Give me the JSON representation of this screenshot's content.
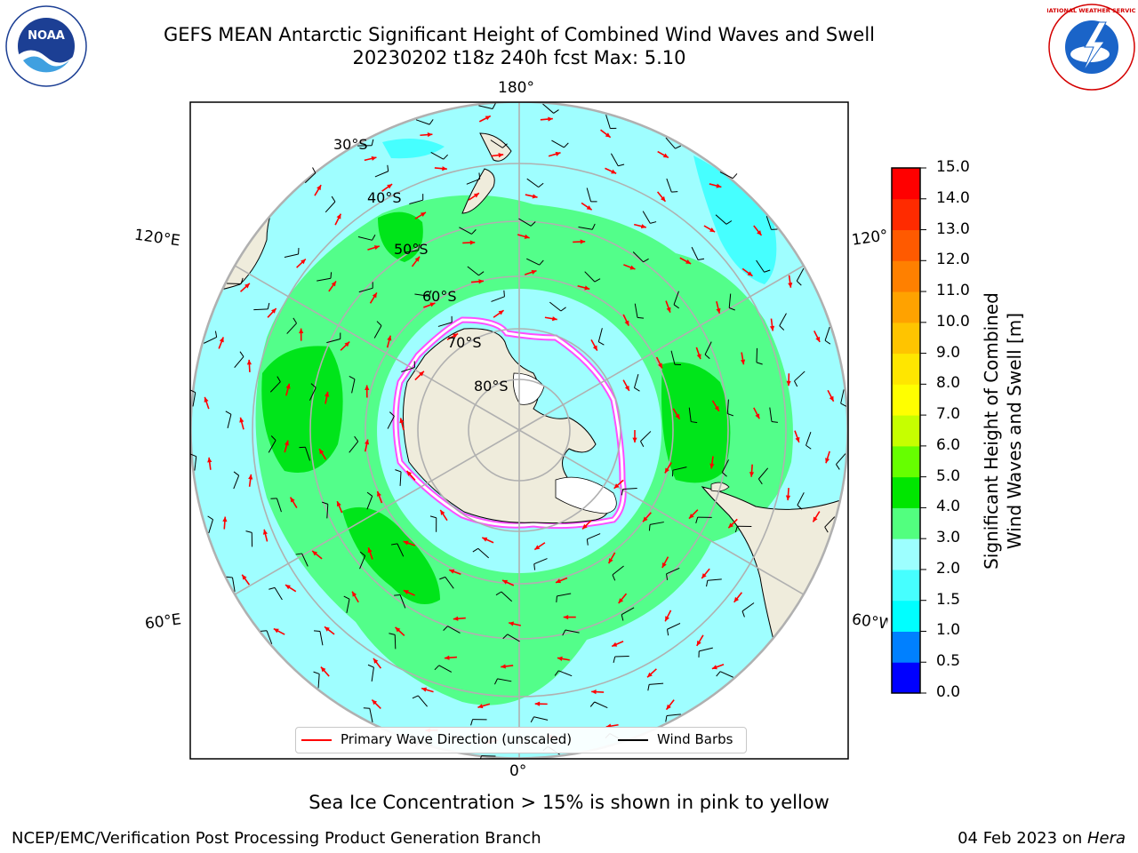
{
  "title": {
    "line1": "GEFS MEAN Antarctic Significant Height of Combined Wind Waves and Swell",
    "line2": "20230202 t18z 240h fcst   Max: 5.10"
  },
  "logos": {
    "left": "NOAA",
    "right": "NATIONAL WEATHER SERVICE"
  },
  "map": {
    "projection": "south-polar-stereographic",
    "center": "South Pole",
    "lon_labels": {
      "top": "180°",
      "bottom": "0°",
      "upper_left": "120°E",
      "upper_right": "120°W",
      "lower_left": "60°E",
      "lower_right": "60°W"
    },
    "lat_labels": [
      "30°S",
      "40°S",
      "50°S",
      "60°S",
      "70°S",
      "80°S"
    ],
    "colors": {
      "land": "#efecdc",
      "ocean_low": "#9ffeff",
      "ocean_mid": "#53fe8a",
      "ocean_high": "#00e51a",
      "wave_arrow": "#ff0000",
      "wind_barb": "#000000"
    }
  },
  "colorbar": {
    "ticks": [
      "0.0",
      "0.5",
      "1.0",
      "1.5",
      "2.0",
      "3.0",
      "4.0",
      "5.0",
      "6.0",
      "7.0",
      "8.0",
      "9.0",
      "10.0",
      "11.0",
      "12.0",
      "13.0",
      "14.0",
      "15.0"
    ],
    "colors": [
      "#0000ff",
      "#0080ff",
      "#00ffff",
      "#46ffff",
      "#9dffff",
      "#52ff7f",
      "#00e600",
      "#66ff00",
      "#c6ff00",
      "#ffff00",
      "#ffe600",
      "#ffc400",
      "#ffa200",
      "#ff8000",
      "#ff5a00",
      "#ff2b00",
      "#ff0000"
    ],
    "label_line1": "Significant Height of Combined",
    "label_line2": "Wind Waves and Swell [m]"
  },
  "legend": {
    "primary_wave": "Primary Wave Direction (unscaled)",
    "wind_barbs": "Wind Barbs"
  },
  "note": "Sea Ice Concentration > 15% is shown in pink to yellow",
  "footer": {
    "left": "NCEP/EMC/Verification Post Processing Product Generation Branch",
    "right_prefix": "04 Feb 2023 on ",
    "right_machine": "Hera"
  }
}
